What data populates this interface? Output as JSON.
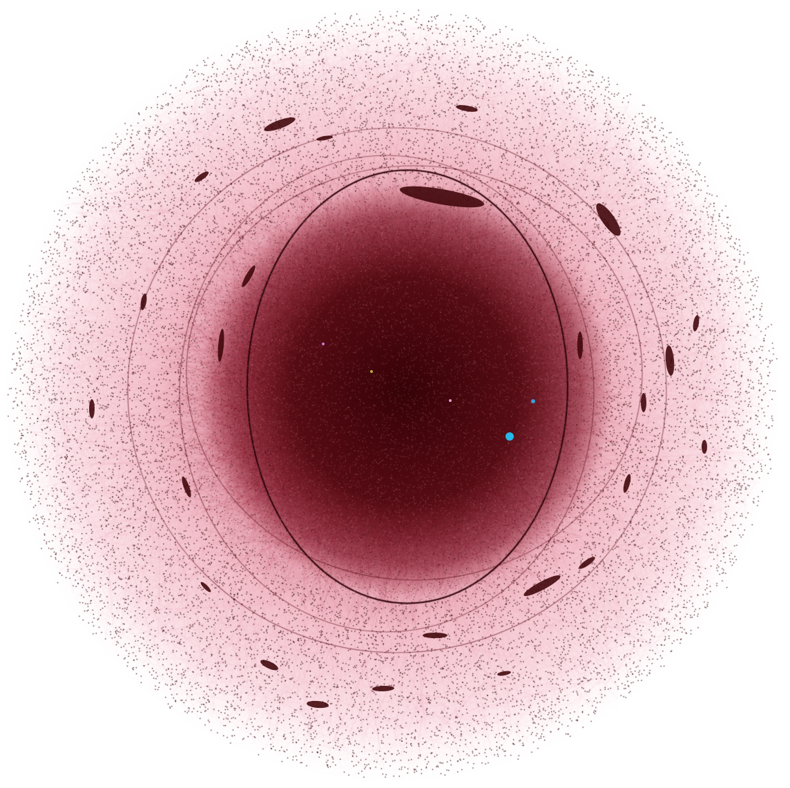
{
  "figure": {
    "kind": "network-graph",
    "layout_style": "radial force-directed",
    "background_color": "#ffffff",
    "edge_color_light": "#f9c9d2",
    "edge_color_mid": "#e7899b",
    "edge_color_core": "#6a0d1a",
    "node_color": "#3a0a0c",
    "dense_core_color": "#3d0408",
    "highlight_nodes": [
      {
        "name": "cyan-node-large",
        "color": "#27b7e8"
      },
      {
        "name": "cyan-node-small",
        "color": "#3a9fd8"
      },
      {
        "name": "yellow-node",
        "color": "#b7b03a"
      },
      {
        "name": "violet-node",
        "color": "#c77ad8"
      },
      {
        "name": "pink-node",
        "color": "#e39ad0"
      }
    ]
  }
}
